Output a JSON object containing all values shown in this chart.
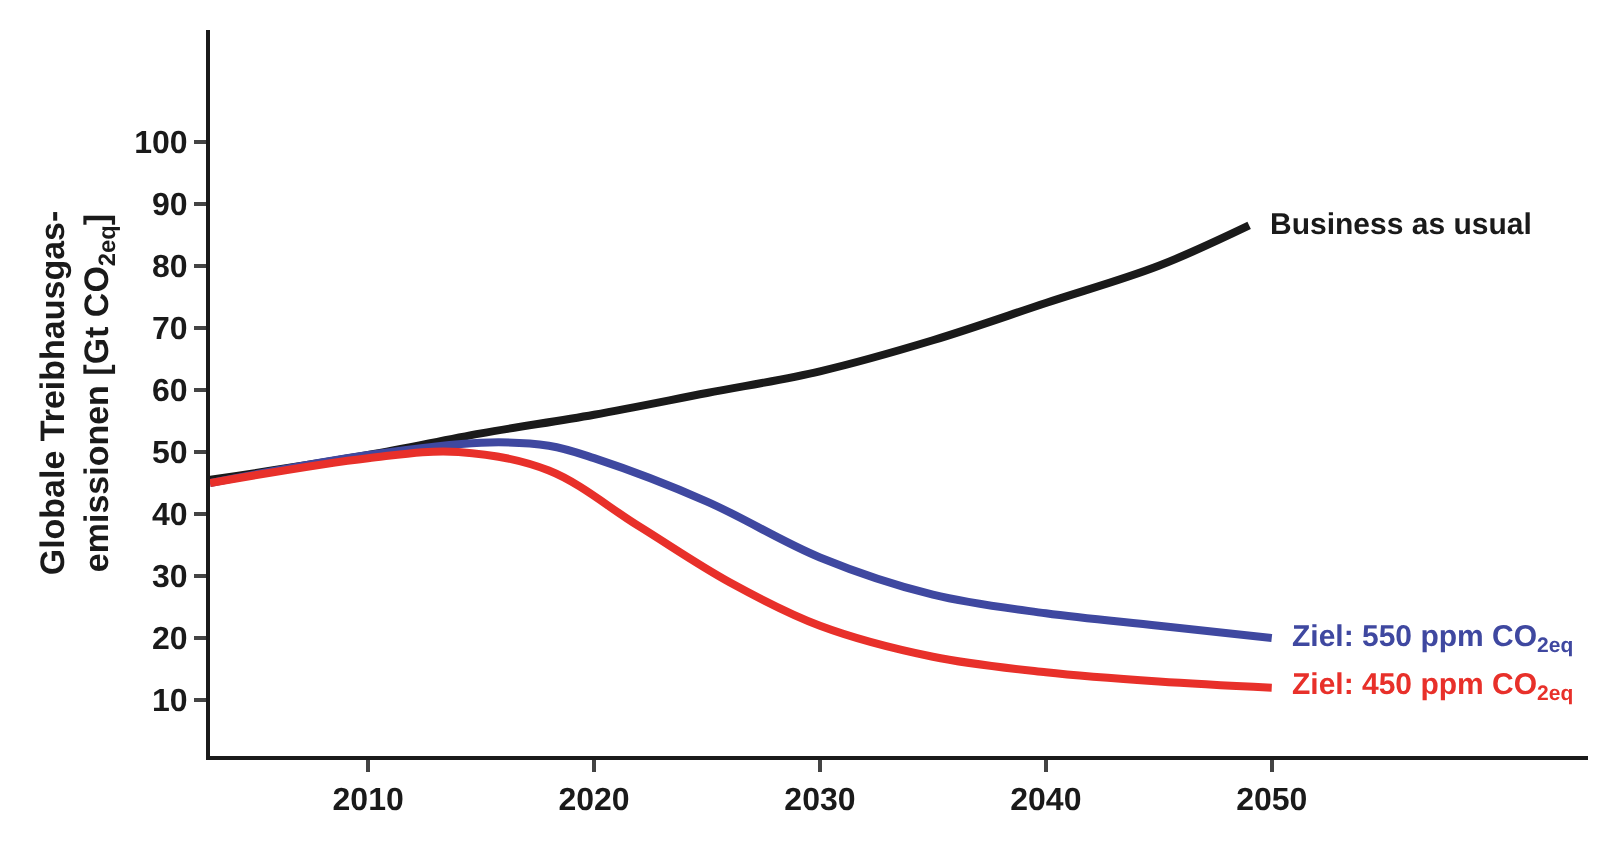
{
  "chart_data": {
    "type": "line",
    "ylabel": "Globale Treibhausgas-\nemissionen [Gt CO$_{2eq}$]",
    "xlim": [
      2003,
      2064
    ],
    "xticks": [
      2010,
      2020,
      2030,
      2040,
      2050
    ],
    "ylim": [
      1,
      118
    ],
    "yticks": [
      10,
      20,
      30,
      40,
      50,
      60,
      70,
      80,
      90,
      100
    ],
    "legend": false,
    "marker": "none",
    "line_style": "solid",
    "series": [
      {
        "name": "Business as usual",
        "color": "#1a1a1a",
        "x": [
          2003,
          2010,
          2015,
          2020,
          2025,
          2030,
          2035,
          2040,
          2045,
          2049
        ],
        "values": [
          45.5,
          49.5,
          53,
          56,
          59.5,
          63,
          68,
          74,
          80,
          86.5
        ]
      },
      {
        "name": "Ziel: 550 ppm CO$_{2eq}$",
        "color": "#3f48a0",
        "x": [
          2003,
          2010,
          2015,
          2018,
          2020,
          2025,
          2030,
          2035,
          2040,
          2045,
          2050
        ],
        "values": [
          45,
          49.5,
          51.5,
          51,
          49,
          42,
          33,
          27,
          24,
          22,
          20
        ]
      },
      {
        "name": "Ziel: 450 ppm CO$_{2eq}$",
        "color": "#e8302a",
        "x": [
          2003,
          2010,
          2014,
          2018,
          2022,
          2026,
          2030,
          2035,
          2040,
          2045,
          2050
        ],
        "values": [
          45,
          49,
          50,
          47,
          38,
          29,
          22,
          17,
          14.5,
          13,
          12
        ]
      }
    ]
  }
}
